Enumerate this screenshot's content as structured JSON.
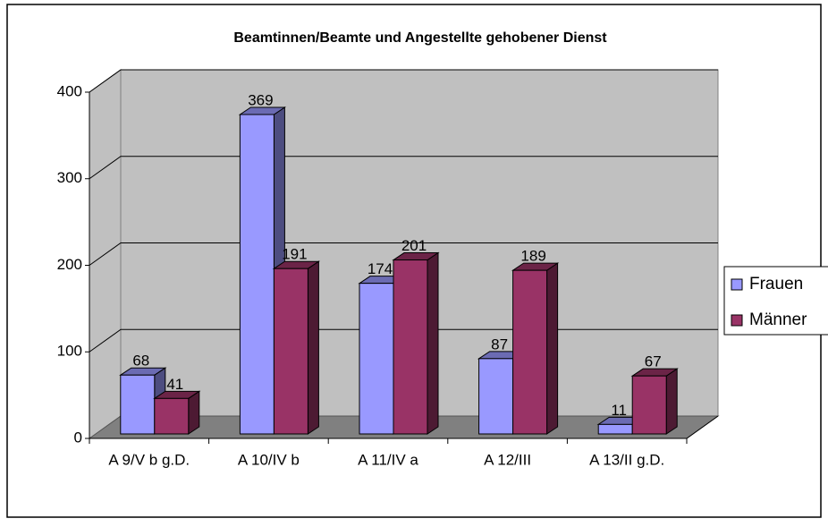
{
  "chart_data": {
    "type": "bar3d",
    "title": "Beamtinnen/Beamte und Angestellte gehobener Dienst",
    "categories": [
      "A 9/V b g.D.",
      "A 10/IV b",
      "A 11/IV a",
      "A 12/III",
      "A 13/II g.D."
    ],
    "series": [
      {
        "name": "Frauen",
        "color": "#9999ff",
        "values": [
          68,
          369,
          174,
          87,
          11
        ]
      },
      {
        "name": "Männer",
        "color": "#993366",
        "values": [
          41,
          191,
          201,
          189,
          67
        ]
      }
    ],
    "ylim": [
      0,
      400
    ],
    "yticks": [
      0,
      100,
      200,
      300,
      400
    ],
    "grid": true,
    "legend": "right"
  }
}
